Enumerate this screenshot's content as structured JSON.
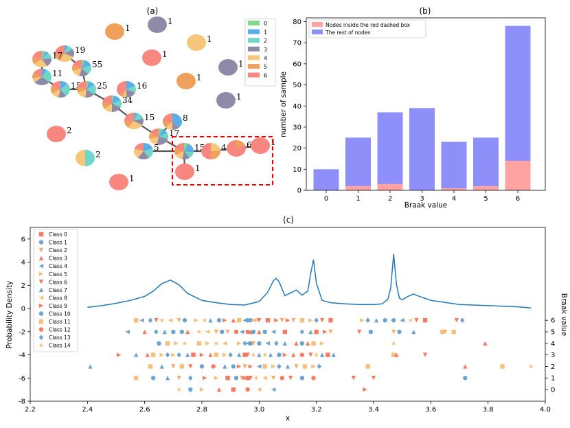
{
  "colors": {
    "class_0": "#7fdc8c",
    "class_1": "#5aaee8",
    "class_2": "#6fd6c8",
    "class_3": "#8e8aa8",
    "class_4": "#f6c77a",
    "class_5": "#f0a05a",
    "class_6": "#f7877f",
    "bar_red": "#ffa2a2",
    "bar_blue": "#8f8ff9",
    "kde": "#1f77b4",
    "box": "#e00000"
  },
  "panel_a": {
    "label": "(a)",
    "legend": [
      "0",
      "1",
      "2",
      "3",
      "4",
      "5",
      "6"
    ],
    "nodes": [
      {
        "label": "1",
        "slices": [
          0,
          0,
          0,
          0,
          0,
          1,
          0
        ]
      },
      {
        "label": "1",
        "slices": [
          0,
          0,
          0,
          1,
          0,
          0,
          0
        ]
      },
      {
        "label": "1",
        "slices": [
          0,
          0,
          0,
          0,
          1,
          0,
          0
        ]
      },
      {
        "label": "1",
        "slices": [
          0,
          0,
          0,
          0,
          0,
          0,
          1
        ]
      },
      {
        "label": "1",
        "slices": [
          0,
          0,
          0,
          1,
          0,
          0,
          0
        ]
      },
      {
        "label": "1",
        "slices": [
          0,
          0,
          0,
          0,
          0,
          1,
          0
        ]
      },
      {
        "label": "1",
        "slices": [
          0,
          0,
          0,
          1,
          0,
          0,
          0
        ]
      },
      {
        "label": "19",
        "slices": [
          0,
          1,
          2,
          3,
          5,
          3,
          5
        ]
      },
      {
        "label": "17",
        "slices": [
          1,
          1,
          2,
          3,
          4,
          2,
          4
        ]
      },
      {
        "label": "55",
        "slices": [
          3,
          8,
          10,
          9,
          8,
          6,
          11
        ]
      },
      {
        "label": "11",
        "slices": [
          0,
          1,
          3,
          3,
          1,
          1,
          2
        ]
      },
      {
        "label": "15",
        "slices": [
          0,
          2,
          4,
          2,
          2,
          2,
          3
        ]
      },
      {
        "label": "25",
        "slices": [
          1,
          3,
          5,
          4,
          4,
          3,
          5
        ]
      },
      {
        "label": "16",
        "slices": [
          0,
          3,
          2,
          3,
          1,
          1,
          6
        ]
      },
      {
        "label": "34",
        "slices": [
          1,
          5,
          5,
          6,
          5,
          4,
          8
        ]
      },
      {
        "label": "15",
        "slices": [
          0,
          1,
          2,
          2,
          4,
          2,
          4
        ]
      },
      {
        "label": "8",
        "slices": [
          0,
          3,
          0,
          1,
          1,
          1,
          2
        ]
      },
      {
        "label": "17",
        "slices": [
          1,
          2,
          2,
          4,
          3,
          2,
          3
        ]
      },
      {
        "label": "2",
        "slices": [
          0,
          0,
          0,
          0,
          0,
          0,
          1
        ]
      },
      {
        "label": "2",
        "slices": [
          0,
          0,
          1,
          0,
          1,
          0,
          0
        ]
      },
      {
        "label": "5",
        "slices": [
          0,
          1,
          1,
          1,
          1,
          0,
          1
        ]
      },
      {
        "label": "15",
        "slices": [
          1,
          3,
          2,
          2,
          2,
          2,
          3
        ]
      },
      {
        "label": "4",
        "slices": [
          0,
          0,
          0,
          0,
          1,
          1,
          2
        ]
      },
      {
        "label": "6",
        "slices": [
          0,
          0,
          0,
          0,
          0,
          1,
          5
        ]
      },
      {
        "label": "1",
        "slices": [
          0,
          0,
          0,
          0,
          0,
          0,
          1
        ]
      },
      {
        "label": "1",
        "slices": [
          0,
          0,
          0,
          0,
          0,
          0,
          1
        ]
      },
      {
        "label": "1",
        "slices": [
          0,
          0,
          0,
          0,
          0,
          0,
          1
        ]
      }
    ]
  },
  "chart_data": [
    {
      "type": "bar",
      "title": "(b)",
      "categories": [
        "0",
        "1",
        "2",
        "3",
        "4",
        "5",
        "6"
      ],
      "series": [
        {
          "name": "Nodes inside the red dashed box",
          "values": [
            0,
            2,
            3,
            0,
            1,
            2,
            14
          ]
        },
        {
          "name": "The rest of nodes",
          "values": [
            10,
            25,
            37,
            39,
            23,
            25,
            78
          ]
        }
      ],
      "xlabel": "Braak value",
      "ylabel": "number of sample",
      "ylim": [
        0,
        80
      ],
      "yticks": [
        "0",
        "10",
        "20",
        "30",
        "40",
        "50",
        "60",
        "70",
        "80"
      ],
      "legend_position": "top-left"
    },
    {
      "type": "scatter",
      "title": "(c)",
      "xlabel": "x",
      "ylabel": "Probability Density",
      "y2label": "Braak value",
      "xlim": [
        2.2,
        4.0
      ],
      "ylim": [
        -8,
        7
      ],
      "xticks": [
        "2.2",
        "2.4",
        "2.6",
        "2.8",
        "3.0",
        "3.2",
        "3.4",
        "3.6",
        "3.8",
        "4.0"
      ],
      "yticks": [
        "-8",
        "-6",
        "-4",
        "-2",
        "0",
        "2",
        "4",
        "6"
      ],
      "y2ticks": [
        "0",
        "1",
        "2",
        "3",
        "4",
        "5",
        "6"
      ],
      "legend": [
        "Class 0",
        "Class 1",
        "Class 2",
        "Class 3",
        "Class 4",
        "Class 5",
        "Class 6",
        "Class 7",
        "Class 8",
        "Class 9",
        "Class 10",
        "Class 11",
        "Class 12",
        "Class 13",
        "Class 14"
      ],
      "kde": {
        "x": [
          2.4,
          2.45,
          2.5,
          2.55,
          2.6,
          2.63,
          2.66,
          2.69,
          2.72,
          2.75,
          2.8,
          2.85,
          2.9,
          2.95,
          3.0,
          3.03,
          3.05,
          3.06,
          3.07,
          3.09,
          3.11,
          3.13,
          3.15,
          3.17,
          3.18,
          3.19,
          3.2,
          3.22,
          3.25,
          3.3,
          3.35,
          3.4,
          3.43,
          3.45,
          3.46,
          3.47,
          3.48,
          3.49,
          3.5,
          3.52,
          3.54,
          3.56,
          3.6,
          3.7,
          3.8,
          3.9,
          3.95
        ],
        "y": [
          0.1,
          0.25,
          0.45,
          0.7,
          1.05,
          1.5,
          2.15,
          2.45,
          2.05,
          1.3,
          0.7,
          0.5,
          0.35,
          0.3,
          0.6,
          1.4,
          2.4,
          2.6,
          2.3,
          1.1,
          1.35,
          1.6,
          1.15,
          1.5,
          3.0,
          4.2,
          2.2,
          0.7,
          0.5,
          0.4,
          0.35,
          0.35,
          0.4,
          0.8,
          1.8,
          4.7,
          2.1,
          0.9,
          0.75,
          1.05,
          1.25,
          1.05,
          0.7,
          0.35,
          0.25,
          0.15,
          0.05
        ]
      },
      "points": [
        {
          "braak": 6,
          "x": [
            2.57,
            2.59,
            2.62,
            2.64,
            2.66,
            2.69,
            2.72,
            2.74,
            2.78,
            2.81,
            2.83,
            2.86,
            2.88,
            2.91,
            2.93,
            2.95,
            2.96,
            2.97,
            2.98,
            2.99,
            3.0,
            3.03,
            3.06,
            3.08,
            3.1,
            3.12,
            3.15,
            3.18,
            3.2,
            3.22,
            3.25,
            3.36,
            3.38,
            3.41,
            3.44,
            3.47,
            3.5,
            3.53,
            3.55,
            3.58,
            3.69,
            3.71
          ]
        },
        {
          "braak": 5,
          "x": [
            2.54,
            2.6,
            2.64,
            2.67,
            2.7,
            2.73,
            2.75,
            2.79,
            2.82,
            2.85,
            2.87,
            2.89,
            2.92,
            2.94,
            2.96,
            2.97,
            2.98,
            3.0,
            3.02,
            3.05,
            3.09,
            3.15,
            3.18,
            3.2,
            3.23,
            3.25,
            3.35,
            3.39,
            3.47,
            3.49,
            3.54,
            3.64,
            3.65,
            3.68
          ]
        },
        {
          "braak": 4,
          "x": [
            2.65,
            2.68,
            2.71,
            2.74,
            2.79,
            2.82,
            2.85,
            2.88,
            2.93,
            2.95,
            2.96,
            2.97,
            2.98,
            3.0,
            3.03,
            3.06,
            3.09,
            3.13,
            3.15,
            3.17,
            3.19,
            3.22,
            3.47,
            3.79
          ]
        },
        {
          "braak": 3,
          "x": [
            2.51,
            2.57,
            2.61,
            2.63,
            2.66,
            2.68,
            2.7,
            2.72,
            2.75,
            2.77,
            2.8,
            2.83,
            2.85,
            2.88,
            2.9,
            2.93,
            2.95,
            2.96,
            2.98,
            3.0,
            3.02,
            3.04,
            3.07,
            3.09,
            3.12,
            3.15,
            3.18,
            3.2,
            3.22,
            3.24,
            3.26,
            3.47,
            3.48,
            3.58
          ]
        },
        {
          "braak": 2,
          "x": [
            2.41,
            2.62,
            2.66,
            2.7,
            2.73,
            2.76,
            2.8,
            2.84,
            2.88,
            2.91,
            2.93,
            2.95,
            2.97,
            3.0,
            3.02,
            3.05,
            3.07,
            3.1,
            3.13,
            3.16,
            3.19,
            3.21,
            3.38,
            3.72,
            3.85,
            3.95
          ]
        },
        {
          "braak": 1,
          "x": [
            2.57,
            2.63,
            2.68,
            2.72,
            2.76,
            2.81,
            2.85,
            2.89,
            2.92,
            2.94,
            2.95,
            2.96,
            2.97,
            2.99,
            3.02,
            3.05,
            3.08,
            3.11,
            3.15,
            3.19,
            3.33,
            3.4,
            3.72
          ]
        },
        {
          "braak": 0,
          "x": [
            2.72,
            2.76,
            2.8,
            2.86,
            2.91,
            2.96,
            3.0,
            3.05,
            3.37
          ]
        }
      ]
    }
  ]
}
